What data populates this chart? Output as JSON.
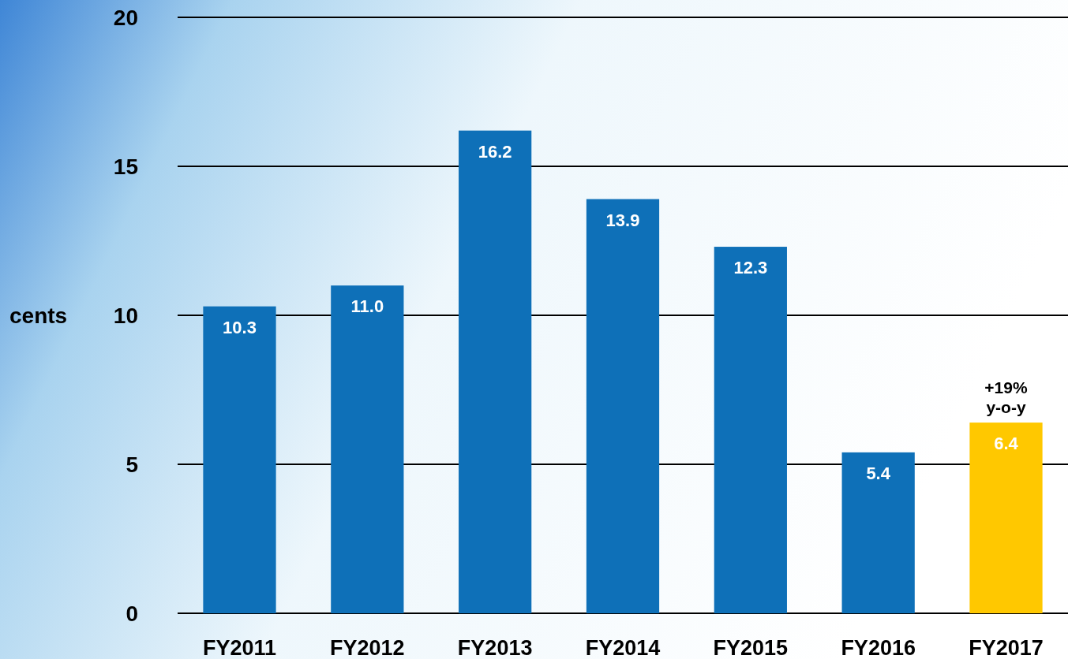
{
  "chart_data": {
    "type": "bar",
    "ylabel": "cents",
    "categories": [
      "FY2011",
      "FY2012",
      "FY2013",
      "FY2014",
      "FY2015",
      "FY2016",
      "FY2017"
    ],
    "values": [
      10.3,
      11.0,
      16.2,
      13.9,
      12.3,
      5.4,
      6.4
    ],
    "colors": [
      "#0e70b8",
      "#0e70b8",
      "#0e70b8",
      "#0e70b8",
      "#0e70b8",
      "#0e70b8",
      "#ffc800"
    ],
    "value_labels": [
      "10.3",
      "11.0",
      "16.2",
      "13.9",
      "12.3",
      "5.4",
      "6.4"
    ],
    "ylim": [
      0,
      20
    ],
    "yticks": [
      0,
      5,
      10,
      15,
      20
    ],
    "grid": "y",
    "annotations": [
      {
        "text": "+19% y-o-y",
        "x": "FY2017",
        "y": 6.4
      }
    ]
  }
}
